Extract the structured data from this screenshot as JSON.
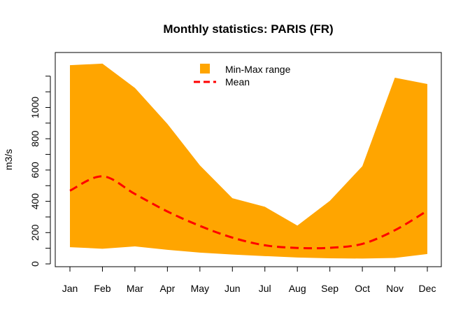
{
  "chart_data": {
    "type": "area",
    "title": "Monthly statistics: PARIS (FR)",
    "xlabel": "",
    "ylabel": "m3/s",
    "categories": [
      "Jan",
      "Feb",
      "Mar",
      "Apr",
      "May",
      "Jun",
      "Jul",
      "Aug",
      "Sep",
      "Oct",
      "Nov",
      "Dec"
    ],
    "ylim": [
      0,
      1260
    ],
    "yticks": [
      0,
      200,
      400,
      600,
      800,
      1000
    ],
    "series": [
      {
        "name": "Min-Max range",
        "kind": "range",
        "color": "#FFA500",
        "min": [
          107,
          97,
          112,
          90,
          72,
          60,
          50,
          41,
          36,
          34,
          38,
          63
        ],
        "max": [
          1270,
          1280,
          1125,
          895,
          630,
          420,
          365,
          245,
          403,
          625,
          1190,
          1150
        ]
      },
      {
        "name": "Mean",
        "kind": "line",
        "style": "dashed",
        "color": "#FF0000",
        "values": [
          468,
          560,
          447,
          335,
          243,
          168,
          119,
          102,
          103,
          128,
          215,
          340
        ]
      }
    ],
    "legend_position": "top-center",
    "grid": false
  }
}
